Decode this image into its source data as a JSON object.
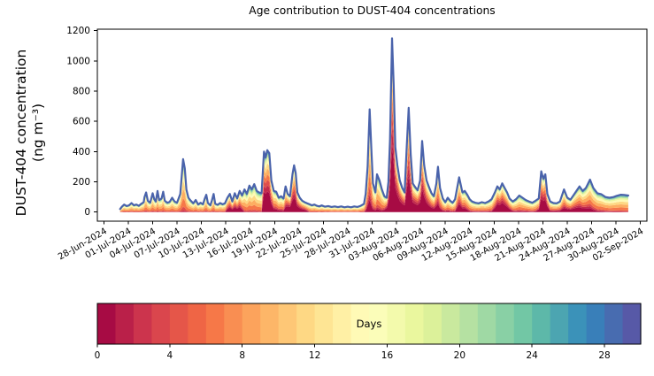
{
  "figure": {
    "background": "#ffffff"
  },
  "chart_data": {
    "type": "area",
    "subtype": "stacked-area-by-age-with-total-line",
    "title": "Age contribution to DUST-404 concentrations",
    "ylabel_line1": "DUST-404 concentration",
    "ylabel_line2": "(ng m⁻³)",
    "grid": false,
    "ylim": [
      -60,
      1210
    ],
    "xlim_days": [
      -0.8,
      66.8
    ],
    "y_ticks": [
      0,
      200,
      400,
      600,
      800,
      1000,
      1200
    ],
    "x_tick_days": [
      0,
      3,
      6,
      9,
      12,
      15,
      18,
      21,
      24,
      27,
      30,
      33,
      36,
      39,
      42,
      45,
      48,
      51,
      54,
      57,
      60,
      63,
      66
    ],
    "x_tick_labels": [
      "28-Jun-2024",
      "01-Jul-2024",
      "04-Jul-2024",
      "07-Jul-2024",
      "10-Jul-2024",
      "13-Jul-2024",
      "16-Jul-2024",
      "19-Jul-2024",
      "22-Jul-2024",
      "25-Jul-2024",
      "28-Jul-2024",
      "31-Jul-2024",
      "03-Aug-2024",
      "06-Aug-2024",
      "09-Aug-2024",
      "12-Aug-2024",
      "15-Aug-2024",
      "18-Aug-2024",
      "21-Aug-2024",
      "24-Aug-2024",
      "27-Aug-2024",
      "30-Aug-2024",
      "02-Sep-2024"
    ],
    "x_tick_rotation_deg": -30,
    "total_line": {
      "name": "total-concentration",
      "color": "#4a63ab",
      "width": 2.2
    },
    "series_total_day_value": [
      [
        2.0,
        20
      ],
      [
        2.2,
        35
      ],
      [
        2.5,
        50
      ],
      [
        2.8,
        40
      ],
      [
        3.1,
        45
      ],
      [
        3.4,
        60
      ],
      [
        3.7,
        45
      ],
      [
        4.0,
        50
      ],
      [
        4.3,
        42
      ],
      [
        4.6,
        55
      ],
      [
        4.9,
        65
      ],
      [
        5.0,
        100
      ],
      [
        5.2,
        130
      ],
      [
        5.4,
        75
      ],
      [
        5.7,
        62
      ],
      [
        6.0,
        125
      ],
      [
        6.2,
        85
      ],
      [
        6.4,
        70
      ],
      [
        6.6,
        140
      ],
      [
        6.8,
        80
      ],
      [
        7.1,
        90
      ],
      [
        7.3,
        135
      ],
      [
        7.5,
        75
      ],
      [
        7.8,
        62
      ],
      [
        8.1,
        68
      ],
      [
        8.4,
        95
      ],
      [
        8.7,
        70
      ],
      [
        9.0,
        62
      ],
      [
        9.4,
        120
      ],
      [
        9.75,
        350
      ],
      [
        9.95,
        290
      ],
      [
        10.15,
        150
      ],
      [
        10.4,
        95
      ],
      [
        10.7,
        75
      ],
      [
        11.0,
        58
      ],
      [
        11.3,
        80
      ],
      [
        11.6,
        50
      ],
      [
        11.9,
        62
      ],
      [
        12.2,
        52
      ],
      [
        12.4,
        88
      ],
      [
        12.6,
        115
      ],
      [
        12.8,
        60
      ],
      [
        13.1,
        45
      ],
      [
        13.3,
        78
      ],
      [
        13.5,
        120
      ],
      [
        13.7,
        55
      ],
      [
        14.0,
        48
      ],
      [
        14.3,
        60
      ],
      [
        14.6,
        52
      ],
      [
        14.9,
        58
      ],
      [
        15.2,
        95
      ],
      [
        15.5,
        120
      ],
      [
        15.8,
        70
      ],
      [
        16.1,
        125
      ],
      [
        16.4,
        90
      ],
      [
        16.7,
        140
      ],
      [
        17.0,
        110
      ],
      [
        17.3,
        150
      ],
      [
        17.6,
        120
      ],
      [
        17.9,
        175
      ],
      [
        18.2,
        150
      ],
      [
        18.5,
        185
      ],
      [
        18.8,
        140
      ],
      [
        19.1,
        130
      ],
      [
        19.4,
        125
      ],
      [
        19.7,
        400
      ],
      [
        19.9,
        360
      ],
      [
        20.1,
        410
      ],
      [
        20.35,
        390
      ],
      [
        20.6,
        210
      ],
      [
        20.9,
        140
      ],
      [
        21.2,
        135
      ],
      [
        21.5,
        95
      ],
      [
        21.8,
        105
      ],
      [
        22.1,
        90
      ],
      [
        22.35,
        170
      ],
      [
        22.6,
        120
      ],
      [
        22.9,
        105
      ],
      [
        23.2,
        250
      ],
      [
        23.4,
        310
      ],
      [
        23.6,
        260
      ],
      [
        23.8,
        130
      ],
      [
        24.1,
        95
      ],
      [
        24.4,
        75
      ],
      [
        24.7,
        65
      ],
      [
        25.0,
        58
      ],
      [
        25.3,
        52
      ],
      [
        25.6,
        45
      ],
      [
        25.9,
        50
      ],
      [
        26.2,
        42
      ],
      [
        26.5,
        38
      ],
      [
        26.8,
        44
      ],
      [
        27.2,
        36
      ],
      [
        27.6,
        40
      ],
      [
        28.0,
        34
      ],
      [
        28.4,
        38
      ],
      [
        28.8,
        33
      ],
      [
        29.2,
        38
      ],
      [
        29.6,
        32
      ],
      [
        30.0,
        36
      ],
      [
        30.4,
        32
      ],
      [
        30.8,
        38
      ],
      [
        31.2,
        34
      ],
      [
        31.6,
        42
      ],
      [
        32.0,
        55
      ],
      [
        32.2,
        120
      ],
      [
        32.45,
        300
      ],
      [
        32.7,
        680
      ],
      [
        32.9,
        420
      ],
      [
        33.1,
        190
      ],
      [
        33.4,
        130
      ],
      [
        33.6,
        250
      ],
      [
        33.9,
        210
      ],
      [
        34.2,
        150
      ],
      [
        34.5,
        105
      ],
      [
        34.8,
        95
      ],
      [
        35.0,
        200
      ],
      [
        35.2,
        480
      ],
      [
        35.45,
        1150
      ],
      [
        35.65,
        850
      ],
      [
        35.85,
        430
      ],
      [
        36.1,
        310
      ],
      [
        36.4,
        210
      ],
      [
        36.7,
        160
      ],
      [
        37.0,
        130
      ],
      [
        37.25,
        420
      ],
      [
        37.5,
        690
      ],
      [
        37.75,
        380
      ],
      [
        38.0,
        190
      ],
      [
        38.3,
        165
      ],
      [
        38.6,
        145
      ],
      [
        38.9,
        210
      ],
      [
        39.15,
        470
      ],
      [
        39.4,
        310
      ],
      [
        39.7,
        210
      ],
      [
        40.0,
        165
      ],
      [
        40.3,
        125
      ],
      [
        40.6,
        105
      ],
      [
        40.9,
        190
      ],
      [
        41.1,
        300
      ],
      [
        41.35,
        160
      ],
      [
        41.7,
        90
      ],
      [
        42.0,
        65
      ],
      [
        42.3,
        95
      ],
      [
        42.6,
        75
      ],
      [
        42.9,
        62
      ],
      [
        43.2,
        85
      ],
      [
        43.7,
        230
      ],
      [
        44.1,
        130
      ],
      [
        44.4,
        140
      ],
      [
        44.7,
        115
      ],
      [
        45.0,
        85
      ],
      [
        45.3,
        70
      ],
      [
        45.7,
        62
      ],
      [
        46.1,
        58
      ],
      [
        46.5,
        66
      ],
      [
        46.9,
        60
      ],
      [
        47.3,
        70
      ],
      [
        47.7,
        85
      ],
      [
        48.1,
        130
      ],
      [
        48.4,
        170
      ],
      [
        48.7,
        150
      ],
      [
        49.0,
        190
      ],
      [
        49.3,
        160
      ],
      [
        49.6,
        130
      ],
      [
        49.9,
        90
      ],
      [
        50.3,
        70
      ],
      [
        50.7,
        85
      ],
      [
        51.1,
        110
      ],
      [
        51.5,
        95
      ],
      [
        51.9,
        80
      ],
      [
        52.3,
        70
      ],
      [
        52.7,
        62
      ],
      [
        53.1,
        75
      ],
      [
        53.5,
        90
      ],
      [
        53.8,
        270
      ],
      [
        54.05,
        220
      ],
      [
        54.3,
        250
      ],
      [
        54.55,
        120
      ],
      [
        54.9,
        70
      ],
      [
        55.3,
        60
      ],
      [
        55.7,
        58
      ],
      [
        56.1,
        70
      ],
      [
        56.6,
        150
      ],
      [
        57.0,
        95
      ],
      [
        57.4,
        82
      ],
      [
        58.0,
        130
      ],
      [
        58.5,
        170
      ],
      [
        58.9,
        140
      ],
      [
        59.3,
        160
      ],
      [
        59.8,
        215
      ],
      [
        60.2,
        160
      ],
      [
        60.7,
        125
      ],
      [
        61.2,
        118
      ],
      [
        61.7,
        100
      ],
      [
        62.2,
        95
      ],
      [
        62.7,
        100
      ],
      [
        63.1,
        108
      ],
      [
        63.6,
        115
      ],
      [
        64.0,
        113
      ],
      [
        64.5,
        110
      ]
    ],
    "age_bands": {
      "description": "stacked layers, youngest dust age at bottom; color sampled from Spectral colormap at band center / 30 days",
      "centers_days": [
        0.5,
        2,
        4,
        6.5,
        9,
        11.5,
        14.5,
        17.5,
        20.5,
        23.5,
        26.5,
        29
      ],
      "base_weights": [
        0.0,
        0.03,
        0.07,
        0.16,
        0.18,
        0.16,
        0.12,
        0.09,
        0.07,
        0.05,
        0.04,
        0.03
      ],
      "fresh_boost": [
        1.2,
        0.3,
        0.2,
        0,
        0,
        0,
        0,
        0,
        0,
        0,
        0,
        0
      ],
      "fresh_profile_day_intensity": [
        [
          2,
          0
        ],
        [
          14.9,
          0
        ],
        [
          15.3,
          0.35
        ],
        [
          16.8,
          0.3
        ],
        [
          17.3,
          0
        ],
        [
          19.4,
          0
        ],
        [
          19.7,
          0.55
        ],
        [
          20.4,
          0.5
        ],
        [
          20.9,
          0.15
        ],
        [
          22.2,
          0.08
        ],
        [
          22.6,
          0.5
        ],
        [
          23.5,
          0.45
        ],
        [
          24.8,
          0.28
        ],
        [
          25.3,
          0
        ],
        [
          32.0,
          0
        ],
        [
          32.4,
          0.15
        ],
        [
          32.9,
          0.1
        ],
        [
          34.4,
          0.05
        ],
        [
          34.9,
          0.5
        ],
        [
          35.5,
          0.75
        ],
        [
          36.2,
          0.6
        ],
        [
          37.2,
          0.55
        ],
        [
          37.6,
          0.6
        ],
        [
          38.4,
          0.5
        ],
        [
          39.0,
          0.45
        ],
        [
          39.3,
          0.55
        ],
        [
          40.1,
          0.3
        ],
        [
          40.9,
          0.25
        ],
        [
          41.6,
          0.1
        ],
        [
          43.2,
          0.05
        ],
        [
          43.6,
          0.3
        ],
        [
          44.4,
          0.2
        ],
        [
          45.1,
          0.05
        ],
        [
          47.9,
          0.05
        ],
        [
          48.3,
          0.45
        ],
        [
          49.1,
          0.5
        ],
        [
          49.8,
          0.3
        ],
        [
          50.4,
          0.05
        ],
        [
          53.4,
          0.05
        ],
        [
          53.7,
          0.55
        ],
        [
          54.5,
          0.5
        ],
        [
          54.9,
          0.1
        ],
        [
          56.2,
          0.15
        ],
        [
          56.9,
          0.25
        ],
        [
          58.1,
          0.25
        ],
        [
          59.6,
          0.15
        ],
        [
          60.6,
          0.05
        ],
        [
          62.0,
          0.02
        ],
        [
          64.5,
          0
        ]
      ]
    },
    "colorbar": {
      "label": "Days",
      "orientation": "horizontal",
      "vmin": 0,
      "vmax": 30,
      "n_bins": 30,
      "ticks": [
        0,
        4,
        8,
        12,
        16,
        20,
        24,
        28
      ],
      "colormap": "Spectral",
      "colormap_anchors": [
        "#9e0142",
        "#d53e4f",
        "#f46d43",
        "#fdae61",
        "#fee08b",
        "#ffffbf",
        "#e6f598",
        "#abdda4",
        "#66c2a5",
        "#3288bd",
        "#5e4fa2"
      ]
    }
  }
}
